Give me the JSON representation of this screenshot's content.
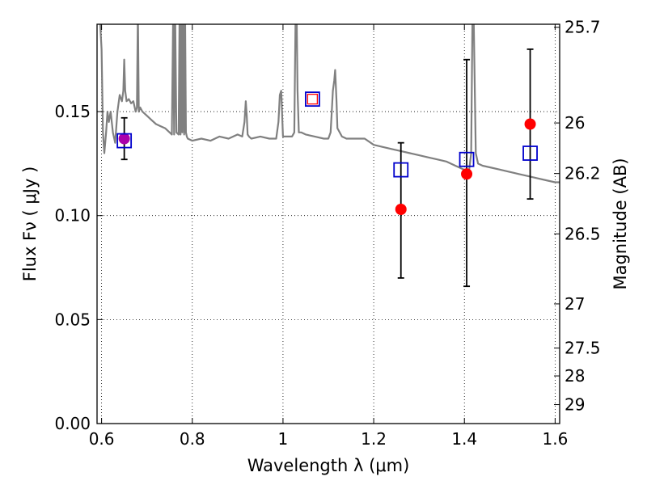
{
  "chart_data": {
    "type": "scatter",
    "xlabel": "Wavelength  λ (μm)",
    "ylabel": "Flux  Fν  ( μJy )",
    "y2label": "Magnitude (AB)",
    "xlim": [
      0.59,
      1.61
    ],
    "ylim": [
      0.0,
      0.192
    ],
    "x_ticks": [
      {
        "value": 0.6,
        "label": "0.6"
      },
      {
        "value": 0.8,
        "label": "0.8"
      },
      {
        "value": 1.0,
        "label": "1"
      },
      {
        "value": 1.2,
        "label": "1.2"
      },
      {
        "value": 1.4,
        "label": "1.4"
      },
      {
        "value": 1.6,
        "label": "1.6"
      }
    ],
    "y_ticks": [
      {
        "value": 0.0,
        "label": "0.00"
      },
      {
        "value": 0.05,
        "label": "0.05"
      },
      {
        "value": 0.1,
        "label": "0.10"
      },
      {
        "value": 0.15,
        "label": "0.15"
      }
    ],
    "y2_ticks": [
      {
        "mag": 25.7,
        "label": "25.7"
      },
      {
        "mag": 26.0,
        "label": "26"
      },
      {
        "mag": 26.2,
        "label": "26.2"
      },
      {
        "mag": 26.5,
        "label": "26.5"
      },
      {
        "mag": 27.0,
        "label": "27"
      },
      {
        "mag": 27.5,
        "label": "27.5"
      },
      {
        "mag": 28.0,
        "label": "28"
      },
      {
        "mag": 29.0,
        "label": "29"
      }
    ],
    "grid": true,
    "grid_style": "dotted",
    "colors": {
      "model": "#808080",
      "observed": "#ff0000",
      "model_photometry": "#0000cc",
      "errorbar": "#000000",
      "overlap": "#aa00aa"
    },
    "series": [
      {
        "marker": "line",
        "color": "#808080",
        "x": [
          0.595,
          0.6,
          0.603,
          0.606,
          0.608,
          0.61,
          0.613,
          0.616,
          0.62,
          0.625,
          0.63,
          0.635,
          0.64,
          0.645,
          0.648,
          0.65,
          0.652,
          0.655,
          0.66,
          0.665,
          0.67,
          0.675,
          0.678,
          0.68,
          0.682,
          0.685,
          0.69,
          0.7,
          0.71,
          0.72,
          0.73,
          0.74,
          0.75,
          0.755,
          0.758,
          0.76,
          0.762,
          0.765,
          0.77,
          0.772,
          0.774,
          0.776,
          0.778,
          0.78,
          0.782,
          0.784,
          0.786,
          0.788,
          0.79,
          0.8,
          0.82,
          0.84,
          0.86,
          0.88,
          0.9,
          0.91,
          0.915,
          0.918,
          0.92,
          0.922,
          0.925,
          0.93,
          0.95,
          0.97,
          0.985,
          0.99,
          0.993,
          0.996,
          1.0,
          1.02,
          1.025,
          1.028,
          1.03,
          1.032,
          1.035,
          1.04,
          1.05,
          1.07,
          1.09,
          1.1,
          1.105,
          1.108,
          1.11,
          1.113,
          1.115,
          1.118,
          1.12,
          1.13,
          1.14,
          1.16,
          1.18,
          1.2,
          1.22,
          1.24,
          1.26,
          1.28,
          1.3,
          1.32,
          1.34,
          1.36,
          1.37,
          1.38,
          1.39,
          1.4,
          1.41,
          1.415,
          1.418,
          1.42,
          1.425,
          1.43,
          1.44,
          1.46,
          1.48,
          1.5,
          1.52,
          1.54,
          1.56,
          1.58,
          1.6,
          1.61
        ],
        "y": [
          0.2,
          0.18,
          0.14,
          0.13,
          0.135,
          0.14,
          0.15,
          0.145,
          0.15,
          0.14,
          0.135,
          0.15,
          0.158,
          0.155,
          0.16,
          0.175,
          0.16,
          0.155,
          0.156,
          0.154,
          0.155,
          0.15,
          0.152,
          0.2,
          0.15,
          0.152,
          0.15,
          0.148,
          0.146,
          0.144,
          0.143,
          0.142,
          0.14,
          0.139,
          0.2,
          0.139,
          0.2,
          0.14,
          0.139,
          0.2,
          0.139,
          0.2,
          0.14,
          0.2,
          0.139,
          0.2,
          0.14,
          0.138,
          0.137,
          0.136,
          0.137,
          0.136,
          0.138,
          0.137,
          0.139,
          0.138,
          0.145,
          0.155,
          0.148,
          0.139,
          0.138,
          0.137,
          0.138,
          0.137,
          0.137,
          0.145,
          0.158,
          0.16,
          0.138,
          0.138,
          0.14,
          0.2,
          0.2,
          0.16,
          0.14,
          0.14,
          0.139,
          0.138,
          0.137,
          0.137,
          0.14,
          0.152,
          0.16,
          0.165,
          0.17,
          0.155,
          0.142,
          0.138,
          0.137,
          0.137,
          0.137,
          0.134,
          0.133,
          0.132,
          0.131,
          0.13,
          0.129,
          0.128,
          0.127,
          0.126,
          0.125,
          0.124,
          0.123,
          0.122,
          0.121,
          0.13,
          0.2,
          0.2,
          0.13,
          0.125,
          0.124,
          0.123,
          0.122,
          0.121,
          0.12,
          0.119,
          0.118,
          0.117,
          0.116,
          0.116
        ]
      },
      {
        "marker": "circle",
        "color": "#ff0000",
        "x": [
          0.65,
          1.26,
          1.405,
          1.545
        ],
        "y": [
          0.137,
          0.103,
          0.12,
          0.144
        ]
      },
      {
        "marker": "square",
        "color": "#0000cc",
        "x": [
          0.65,
          1.065,
          1.26,
          1.405,
          1.545
        ],
        "y": [
          0.136,
          0.156,
          0.122,
          0.127,
          0.13
        ]
      }
    ],
    "errorbars": [
      {
        "x": 0.65,
        "y": 0.137,
        "ylow": 0.127,
        "yhigh": 0.147
      },
      {
        "x": 1.26,
        "y": 0.103,
        "ylow": 0.07,
        "yhigh": 0.135
      },
      {
        "x": 1.405,
        "y": 0.12,
        "ylow": 0.066,
        "yhigh": 0.175
      },
      {
        "x": 1.545,
        "y": 0.144,
        "ylow": 0.108,
        "yhigh": 0.18
      }
    ],
    "small_red_square": {
      "x": 1.065,
      "y": 0.156,
      "color": "#ff0000"
    }
  }
}
